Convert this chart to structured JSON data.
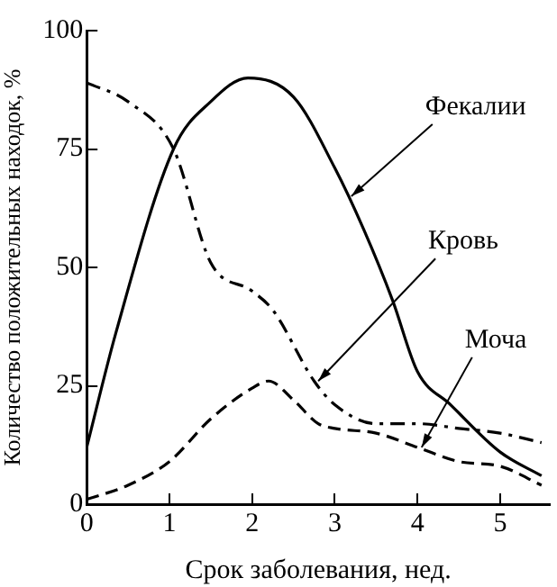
{
  "chart_data": {
    "type": "line",
    "xlabel": "Срок заболевания, нед.",
    "ylabel": "Количество положительных находок, %",
    "xlim": [
      0,
      5.6
    ],
    "ylim": [
      0,
      100
    ],
    "xticks": [
      0,
      1,
      2,
      3,
      4,
      5
    ],
    "yticks": [
      0,
      25,
      50,
      75,
      100
    ],
    "grid": false,
    "legend": false,
    "marker": "none",
    "series": [
      {
        "color": "#000000",
        "line_style": "solid",
        "x": [
          0,
          0.35,
          1.05,
          1.5,
          1.95,
          2.5,
          3,
          3.35,
          3.7,
          4,
          4.4,
          5,
          5.5
        ],
        "values": [
          12,
          36,
          75,
          85,
          90,
          86,
          71,
          58,
          43,
          28,
          21,
          11,
          6
        ]
      },
      {
        "color": "#000000",
        "line_style": "dashdot",
        "x": [
          0,
          0.5,
          1.05,
          1.5,
          2,
          2.25,
          2.75,
          3,
          3.5,
          4,
          4.5,
          5,
          5.5
        ],
        "values": [
          89,
          85,
          75,
          51,
          45,
          41,
          26,
          21,
          17,
          17,
          16,
          15,
          13
        ]
      },
      {
        "color": "#000000",
        "line_style": "dashed",
        "x": [
          0,
          0.5,
          1,
          1.5,
          2,
          2.2,
          2.5,
          2.8,
          3,
          3.5,
          4,
          4.5,
          5,
          5.5
        ],
        "values": [
          1,
          4,
          9,
          18,
          24.5,
          26,
          22,
          17,
          16,
          15,
          12,
          9,
          8,
          4
        ]
      }
    ],
    "annotations": [
      {
        "text": "Фекалии",
        "x": 3.2,
        "y": 65
      },
      {
        "text": "Кровь",
        "x": 2.8,
        "y": 26
      },
      {
        "text": "Моча",
        "x": 4.05,
        "y": 12
      }
    ]
  }
}
